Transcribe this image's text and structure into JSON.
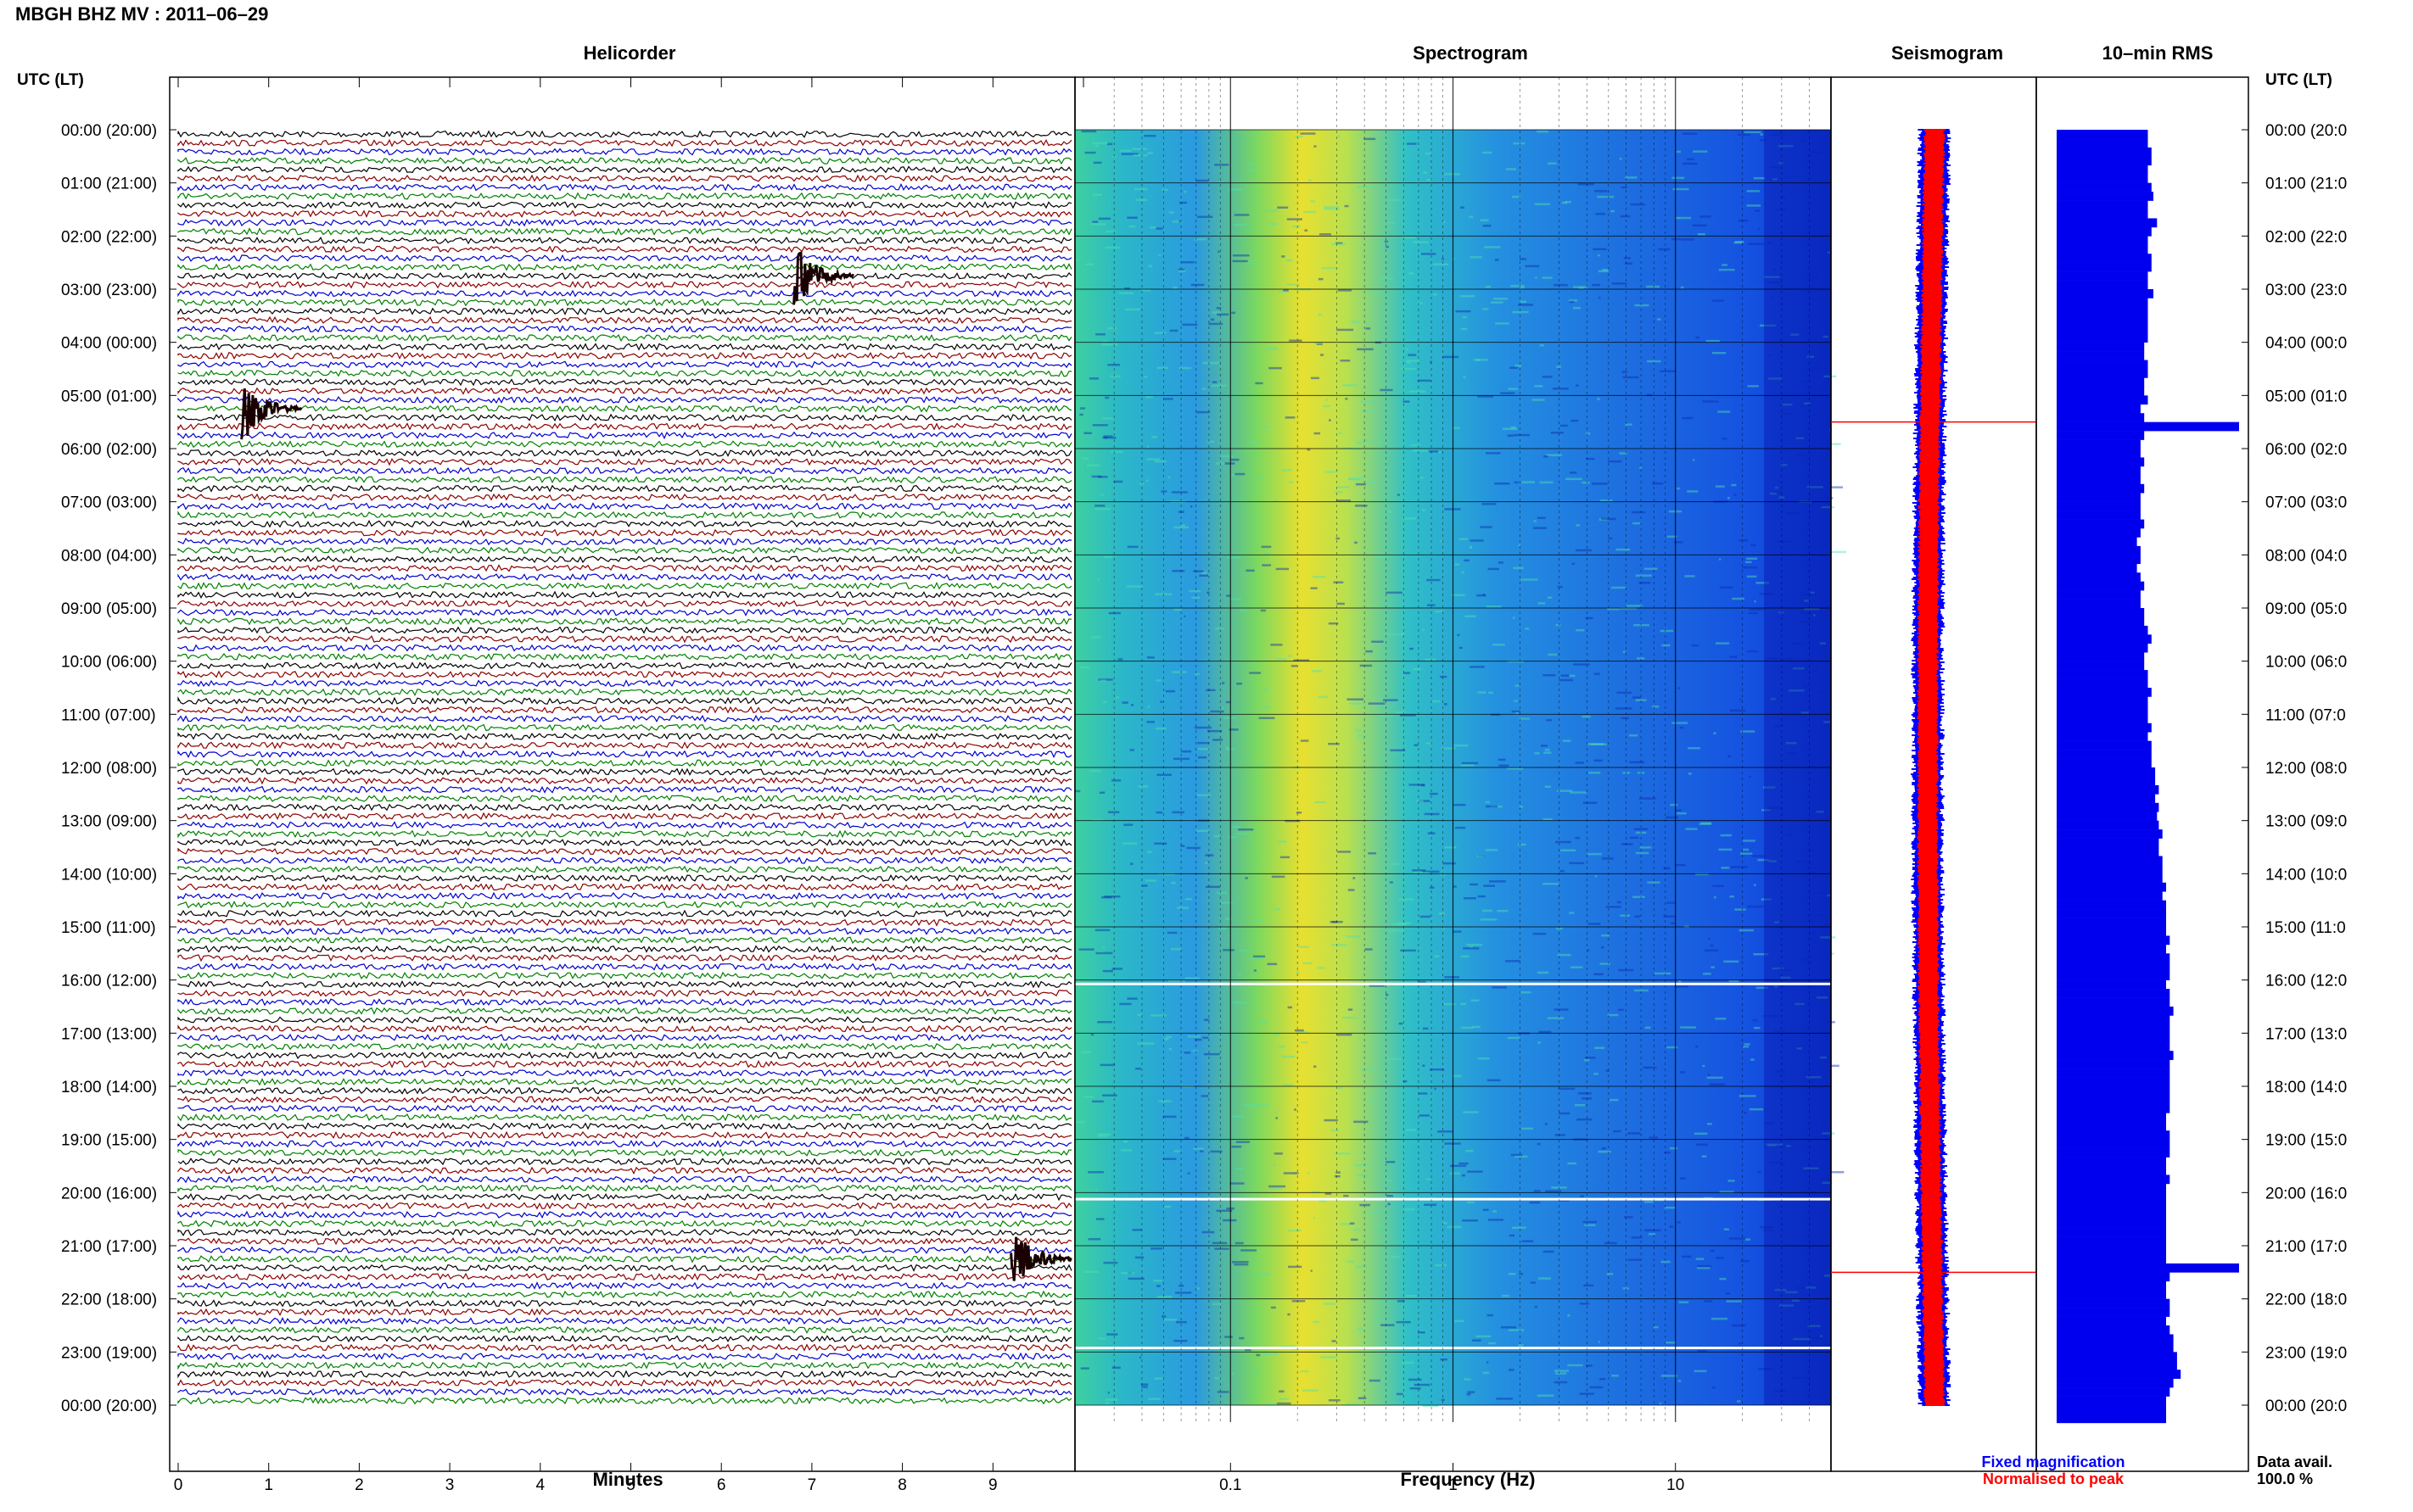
{
  "title": "MBGH BHZ MV : 2011–06–29",
  "left_axis_label": "UTC (LT)",
  "right_axis_label": "UTC (LT)",
  "panels": {
    "helicorder": "Helicorder",
    "spectrogram": "Spectrogram",
    "seismogram": "Seismogram",
    "rms": "10–min RMS"
  },
  "hour_labels": [
    "00:00 (20:00)",
    "01:00 (21:00)",
    "02:00 (22:00)",
    "03:00 (23:00)",
    "04:00 (00:00)",
    "05:00 (01:00)",
    "06:00 (02:00)",
    "07:00 (03:00)",
    "08:00 (04:00)",
    "09:00 (05:00)",
    "10:00 (06:00)",
    "11:00 (07:00)",
    "12:00 (08:00)",
    "13:00 (09:00)",
    "14:00 (10:00)",
    "15:00 (11:00)",
    "16:00 (12:00)",
    "17:00 (13:00)",
    "18:00 (14:00)",
    "19:00 (15:00)",
    "20:00 (16:00)",
    "21:00 (17:00)",
    "22:00 (18:00)",
    "23:00 (19:00)",
    "00:00 (20:00)"
  ],
  "right_hour_labels": [
    "00:00 (20:0",
    "01:00 (21:0",
    "02:00 (22:0",
    "03:00 (23:0",
    "04:00 (00:0",
    "05:00 (01:0",
    "06:00 (02:0",
    "07:00 (03:0",
    "08:00 (04:0",
    "09:00 (05:0",
    "10:00 (06:0",
    "11:00 (07:0",
    "12:00 (08:0",
    "13:00 (09:0",
    "14:00 (10:0",
    "15:00 (11:0",
    "16:00 (12:0",
    "17:00 (13:0",
    "18:00 (14:0",
    "19:00 (15:0",
    "20:00 (16:0",
    "21:00 (17:0",
    "22:00 (18:0",
    "23:00 (19:0",
    "00:00 (20:0"
  ],
  "helicorder_xlabel": "Minutes",
  "helicorder_xticks": [
    "0",
    "1",
    "2",
    "3",
    "4",
    "5",
    "6",
    "7",
    "8",
    "9"
  ],
  "spectrogram_xlabel": "Frequency (Hz)",
  "spectrogram_xticks": [
    "0.1",
    "1",
    "10"
  ],
  "legend": {
    "fixed": "Fixed magnification",
    "normalised": "Normalised to peak",
    "fixed_color": "#0000ff",
    "normalised_color": "#ff0000"
  },
  "data_avail_label": "Data avail.",
  "data_avail_value": "100.0 %",
  "trace_colors": [
    "#000000",
    "#8b0000",
    "#0000cd",
    "#008000"
  ],
  "chart_data": [
    {
      "type": "line",
      "name": "Helicorder",
      "xlabel": "Minutes",
      "xlim": [
        0,
        10
      ],
      "ylim_hours": [
        0,
        24
      ],
      "traces_per_hour": 6,
      "events": [
        {
          "hour": 2.75,
          "minute": 6.8
        },
        {
          "hour": 5.25,
          "minute": 0.7
        },
        {
          "hour": 21.25,
          "minute": 9.2
        }
      ]
    },
    {
      "type": "heatmap",
      "name": "Spectrogram",
      "xlabel": "Frequency (Hz)",
      "xscale": "log",
      "xlim": [
        0.02,
        50
      ],
      "peak_frequency_hz": 0.3
    },
    {
      "type": "line",
      "name": "Seismogram",
      "spikes_hour": [
        5.5,
        21.5
      ]
    },
    {
      "type": "bar",
      "name": "10-min RMS",
      "orientation": "horizontal",
      "bins_per_hour": 6,
      "values": [
        0.5,
        0.5,
        0.52,
        0.52,
        0.5,
        0.5,
        0.52,
        0.53,
        0.5,
        0.5,
        0.55,
        0.52,
        0.5,
        0.5,
        0.52,
        0.52,
        0.5,
        0.5,
        0.53,
        0.5,
        0.5,
        0.5,
        0.5,
        0.5,
        0.48,
        0.48,
        0.5,
        0.5,
        0.48,
        0.48,
        0.5,
        0.46,
        0.48,
        1.0,
        0.48,
        0.46,
        0.46,
        0.48,
        0.46,
        0.46,
        0.48,
        0.46,
        0.46,
        0.46,
        0.48,
        0.46,
        0.44,
        0.46,
        0.46,
        0.44,
        0.46,
        0.48,
        0.46,
        0.46,
        0.48,
        0.48,
        0.5,
        0.52,
        0.5,
        0.48,
        0.48,
        0.5,
        0.5,
        0.52,
        0.5,
        0.5,
        0.5,
        0.52,
        0.5,
        0.52,
        0.52,
        0.52,
        0.54,
        0.54,
        0.56,
        0.54,
        0.56,
        0.55,
        0.56,
        0.58,
        0.56,
        0.56,
        0.58,
        0.58,
        0.58,
        0.6,
        0.58,
        0.6,
        0.6,
        0.6,
        0.6,
        0.62,
        0.6,
        0.62,
        0.62,
        0.62,
        0.6,
        0.62,
        0.62,
        0.64,
        0.62,
        0.62,
        0.62,
        0.62,
        0.64,
        0.62,
        0.62,
        0.62,
        0.62,
        0.62,
        0.62,
        0.6,
        0.6,
        0.62,
        0.62,
        0.62,
        0.6,
        0.6,
        0.62,
        0.6,
        0.6,
        0.6,
        0.6,
        0.6,
        0.6,
        0.6,
        0.6,
        0.6,
        1.0,
        0.62,
        0.6,
        0.6,
        0.62,
        0.62,
        0.6,
        0.62,
        0.64,
        0.64,
        0.66,
        0.66,
        0.68,
        0.64,
        0.62,
        0.6,
        0.6,
        0.6
      ]
    }
  ]
}
